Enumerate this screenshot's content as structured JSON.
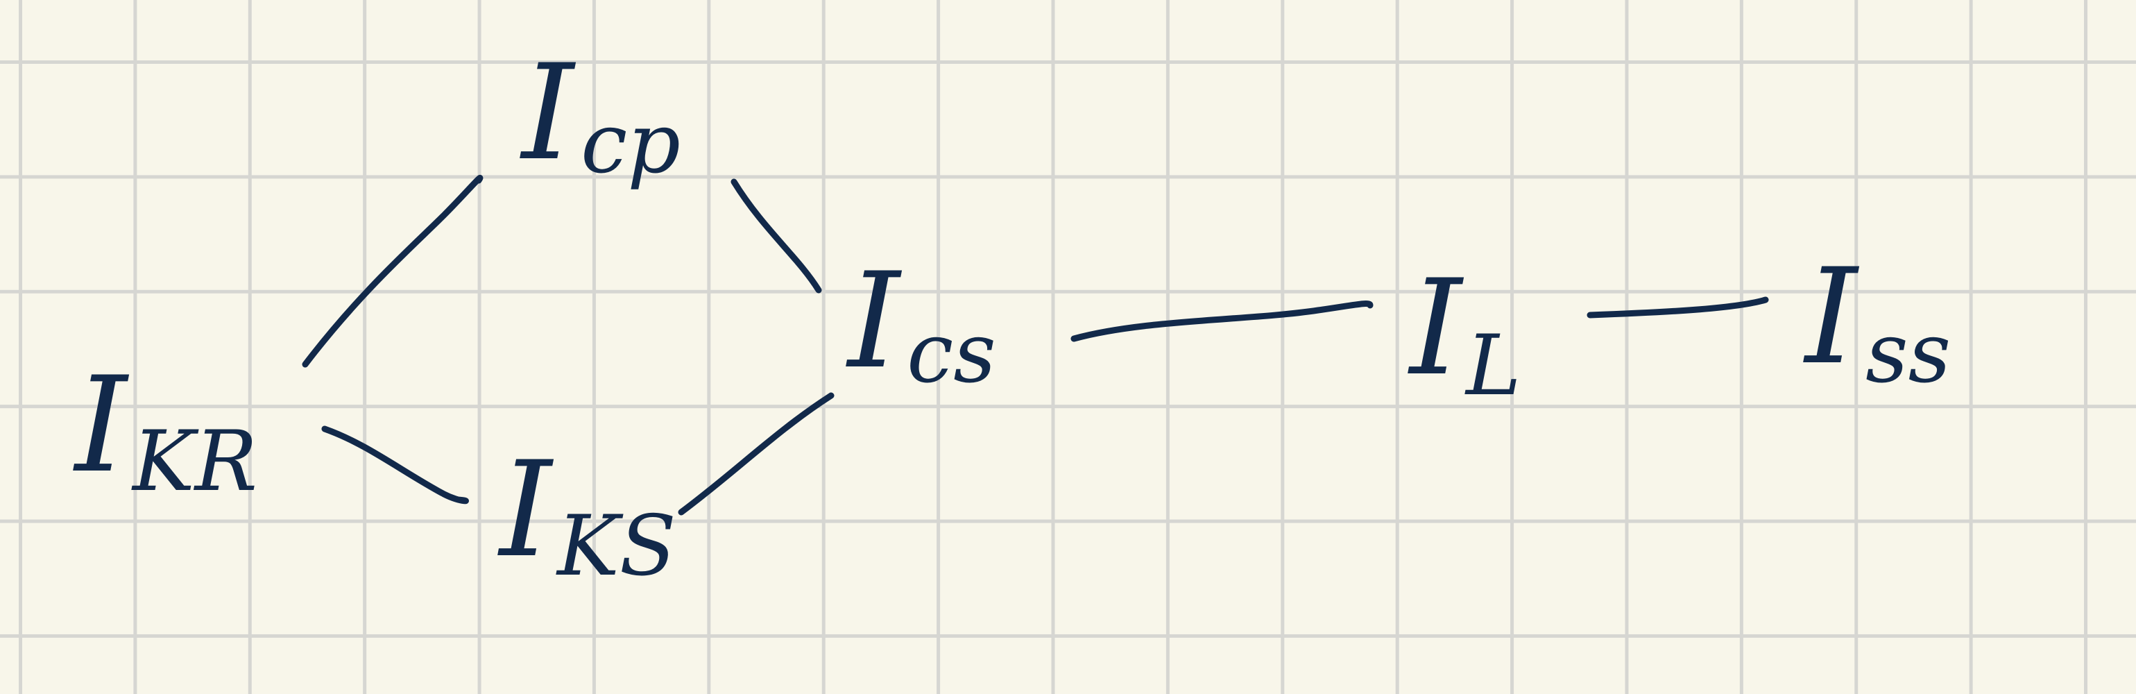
{
  "diagram": {
    "colors": {
      "paper": "#f8f6ea",
      "grid": "#d6d6d2",
      "ink": "#12294a"
    },
    "nodes": [
      {
        "id": "ikr",
        "main": "I",
        "sub": "KR"
      },
      {
        "id": "icp",
        "main": "I",
        "sub": "cp"
      },
      {
        "id": "iks",
        "main": "I",
        "sub": "KS"
      },
      {
        "id": "ics",
        "main": "I",
        "sub": "cs"
      },
      {
        "id": "il",
        "main": "I",
        "sub": "L"
      },
      {
        "id": "iss",
        "main": "I",
        "sub": "ss"
      }
    ],
    "edges": [
      {
        "from": "ikr",
        "to": "icp"
      },
      {
        "from": "ikr",
        "to": "iks"
      },
      {
        "from": "icp",
        "to": "ics"
      },
      {
        "from": "iks",
        "to": "ics"
      },
      {
        "from": "ics",
        "to": "il"
      },
      {
        "from": "il",
        "to": "iss"
      }
    ]
  }
}
